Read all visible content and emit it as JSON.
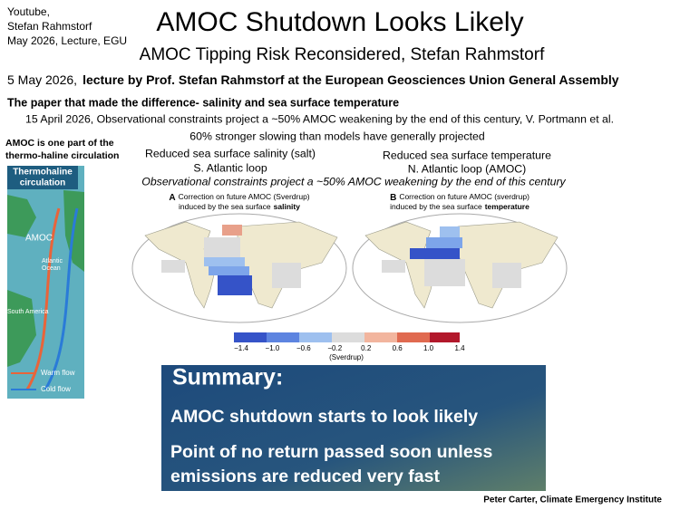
{
  "header": {
    "source": [
      "Youtube,",
      "Stefan Rahmstorf",
      "May 2026, Lecture, EGU"
    ],
    "title": "AMOC Shutdown Looks Likely",
    "subtitle": "AMOC Tipping Risk Reconsidered, Stefan Rahmstorf"
  },
  "lecture": {
    "date": "5 May 2026,",
    "text": "lecture by Prof. Stefan Rahmstorf at the European Geosciences Union General Assembly"
  },
  "paper": {
    "heading": "The paper that made the difference- salinity and sea surface temperature",
    "citation": "15 April 2026, Observational constraints project a ~50% AMOC weakening by the end of this century, V. Portmann  et al.",
    "finding": "60% stronger slowing than models have generally projected"
  },
  "sidebar": {
    "note": [
      "AMOC is one part of the",
      "thermo-haline circulation"
    ],
    "panel_title": [
      "Thermohaline",
      "circulation"
    ],
    "labels": {
      "amoc": "AMOC",
      "ocean": [
        "Atlantic",
        "Ocean"
      ],
      "continent": "South America",
      "warm": "Warm flow",
      "cold": "Cold flow"
    }
  },
  "figure": {
    "left_heading": [
      "Reduced sea surface salinity (salt)",
      "S. Atlantic loop"
    ],
    "right_heading": [
      "Reduced sea surface temperature",
      "N. Atlantic loop (AMOC)"
    ],
    "caption": "Observational constraints project a ~50% AMOC weakening by the end of this century",
    "panels": [
      {
        "letter": "A",
        "line1": "Correction on future AMOC (Sverdrup)",
        "line2": "induced by the sea surface",
        "emphasis": "salinity"
      },
      {
        "letter": "B",
        "line1": "Correction on future AMOC (sverdrup)",
        "line2": "induced by the sea surface",
        "emphasis": "temperature"
      }
    ],
    "colorbar": {
      "ticks": [
        "−1.4",
        "−1.0",
        "−0.6",
        "−0.2",
        "0.2",
        "0.6",
        "1.0",
        "1.4"
      ],
      "unit": "(Sverdrup)"
    }
  },
  "summary": {
    "heading": "Summary:",
    "points": [
      "AMOC shutdown starts to look likely",
      [
        "Point of no return passed soon unless",
        "emissions are reduced very fast"
      ]
    ]
  },
  "credit": "Peter Carter, Climate Emergency Institute"
}
